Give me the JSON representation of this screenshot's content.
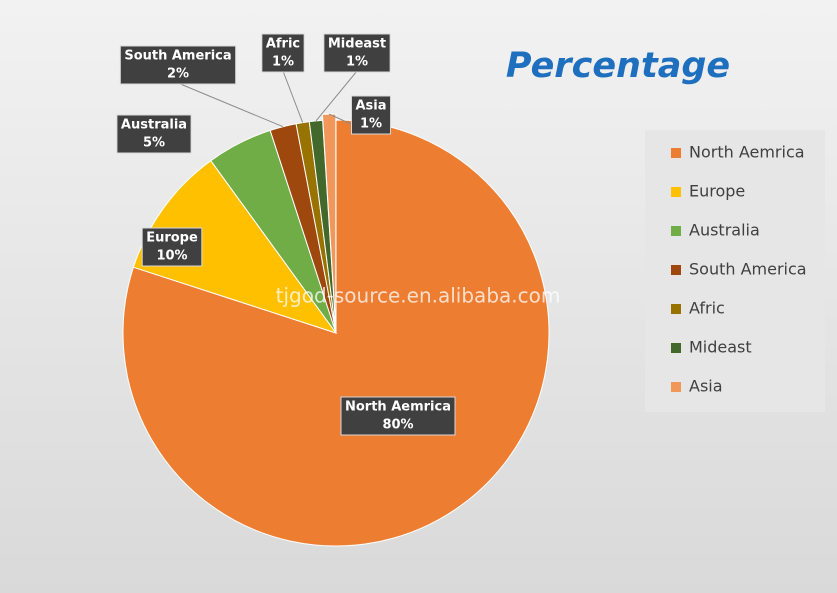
{
  "chart_data": {
    "type": "pie",
    "title": "Percentage",
    "categories": [
      "North Aemrica",
      "Europe",
      "Australia",
      "South America",
      "Afric",
      "Mideast",
      "Asia"
    ],
    "values": [
      80,
      10,
      5,
      2,
      1,
      1,
      1
    ],
    "value_labels": [
      "80%",
      "10%",
      "5%",
      "2%",
      "1%",
      "1%",
      "1%"
    ],
    "colors": [
      "#ed7d31",
      "#ffc000",
      "#70ad47",
      "#9e480e",
      "#997300",
      "#43682b",
      "#f1975a"
    ],
    "legend": "right",
    "watermark": "tjgod-source.en.alibaba.com"
  }
}
